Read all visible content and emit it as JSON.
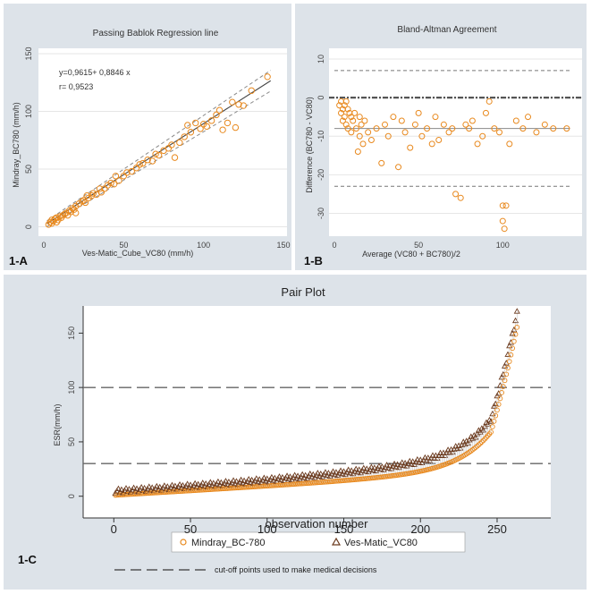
{
  "chart_data": [
    {
      "type": "scatter",
      "panel_tag": "1-A",
      "title": "Passing Bablok Regression line",
      "xlabel": "Ves-Matic_Cube_VC80 (mm/h)",
      "ylabel": "Mindray_BC780 (mm/h)",
      "xlim": [
        0,
        150
      ],
      "ylim": [
        -5,
        150
      ],
      "xticks": [
        0,
        50,
        100,
        150
      ],
      "yticks": [
        0,
        50,
        100,
        150
      ],
      "equation": "y=0,9615+ 0,8846 x",
      "r_label": "r= 0,9523",
      "regression": {
        "intercept": 0.9615,
        "slope": 0.8846
      },
      "series": [
        {
          "x": [
            3,
            4,
            5,
            5,
            6,
            7,
            8,
            8,
            9,
            10,
            11,
            12,
            13,
            14,
            15,
            16,
            17,
            18,
            19,
            20,
            20,
            22,
            24,
            25,
            26,
            27,
            28,
            30,
            31,
            33,
            35,
            36,
            38,
            40,
            42,
            44,
            45,
            47,
            50,
            52,
            55,
            58,
            60,
            62,
            65,
            68,
            70,
            72,
            75,
            78,
            80,
            82,
            85,
            88,
            90,
            92,
            95,
            98,
            100,
            102,
            105,
            108,
            110,
            112,
            115,
            118,
            120,
            122,
            125,
            130,
            140
          ],
          "y": [
            2,
            4,
            3,
            6,
            5,
            7,
            4,
            8,
            6,
            9,
            8,
            10,
            11,
            12,
            10,
            14,
            13,
            16,
            15,
            18,
            12,
            20,
            22,
            23,
            21,
            27,
            25,
            27,
            29,
            28,
            33,
            30,
            33,
            36,
            38,
            37,
            44,
            40,
            44,
            47,
            48,
            51,
            54,
            55,
            58,
            57,
            63,
            62,
            66,
            68,
            71,
            60,
            73,
            78,
            88,
            82,
            90,
            85,
            89,
            87,
            92,
            97,
            101,
            84,
            90,
            108,
            86,
            106,
            105,
            118,
            130
          ]
        }
      ]
    },
    {
      "type": "scatter",
      "panel_tag": "1-B",
      "title": "Bland-Altman Agreement",
      "xlabel": "Average (VC80 + BC780)/2",
      "ylabel": "Difference (BC780 - VC80)",
      "xlim": [
        0,
        145
      ],
      "ylim": [
        -35,
        10
      ],
      "xticks": [
        0,
        50,
        100
      ],
      "yticks": [
        -30,
        -20,
        -10,
        0,
        10
      ],
      "mean_difference": -8,
      "limits_of_agreement": [
        -23,
        7
      ],
      "series": [
        {
          "x": [
            3,
            4,
            4,
            5,
            5,
            6,
            6,
            7,
            7,
            8,
            8,
            9,
            10,
            10,
            11,
            12,
            13,
            14,
            15,
            15,
            16,
            17,
            18,
            20,
            22,
            25,
            28,
            30,
            32,
            35,
            38,
            40,
            42,
            45,
            48,
            50,
            52,
            55,
            58,
            60,
            62,
            65,
            68,
            70,
            72,
            75,
            78,
            80,
            82,
            85,
            88,
            90,
            92,
            95,
            98,
            100,
            100,
            101,
            102,
            104,
            108,
            112,
            115,
            120,
            125,
            130,
            138
          ],
          "y": [
            -2,
            -1,
            -4,
            -3,
            -6,
            -2,
            -5,
            -1,
            -7,
            -3,
            -8,
            -4,
            -5,
            -9,
            -6,
            -4,
            -8,
            -14,
            -5,
            -10,
            -7,
            -12,
            -6,
            -9,
            -11,
            -8,
            -17,
            -7,
            -10,
            -5,
            -18,
            -6,
            -9,
            -13,
            -7,
            -4,
            -10,
            -8,
            -12,
            -5,
            -11,
            -7,
            -9,
            -8,
            -25,
            -26,
            -7,
            -8,
            -6,
            -12,
            -10,
            -4,
            -1,
            -8,
            -9,
            -28,
            -32,
            -34,
            -28,
            -12,
            -6,
            -8,
            -5,
            -9,
            -7,
            -8,
            -8
          ]
        }
      ]
    },
    {
      "type": "scatter",
      "panel_tag": "1-C",
      "title": "Pair Plot",
      "xlabel": "observation number",
      "ylabel": "ESR(mm/h)",
      "xlim": [
        -20,
        285
      ],
      "ylim": [
        -20,
        175
      ],
      "xticks": [
        0,
        50,
        100,
        150,
        200,
        250
      ],
      "yticks": [
        0,
        50,
        100,
        150
      ],
      "cutoff_lines": [
        30,
        100
      ],
      "legend": [
        "Mindray_BC-780",
        "Ves-Matic_VC80"
      ],
      "cutoff_legend": "cut-off points used to make medical decisions",
      "n_observations": 263,
      "series": [
        {
          "name": "Mindray_BC-780",
          "x_range": [
            0,
            262
          ],
          "y_range": [
            1,
            155
          ]
        },
        {
          "name": "Ves-Matic_VC80",
          "x_range": [
            0,
            262
          ],
          "y_range": [
            2,
            160
          ]
        }
      ]
    }
  ]
}
